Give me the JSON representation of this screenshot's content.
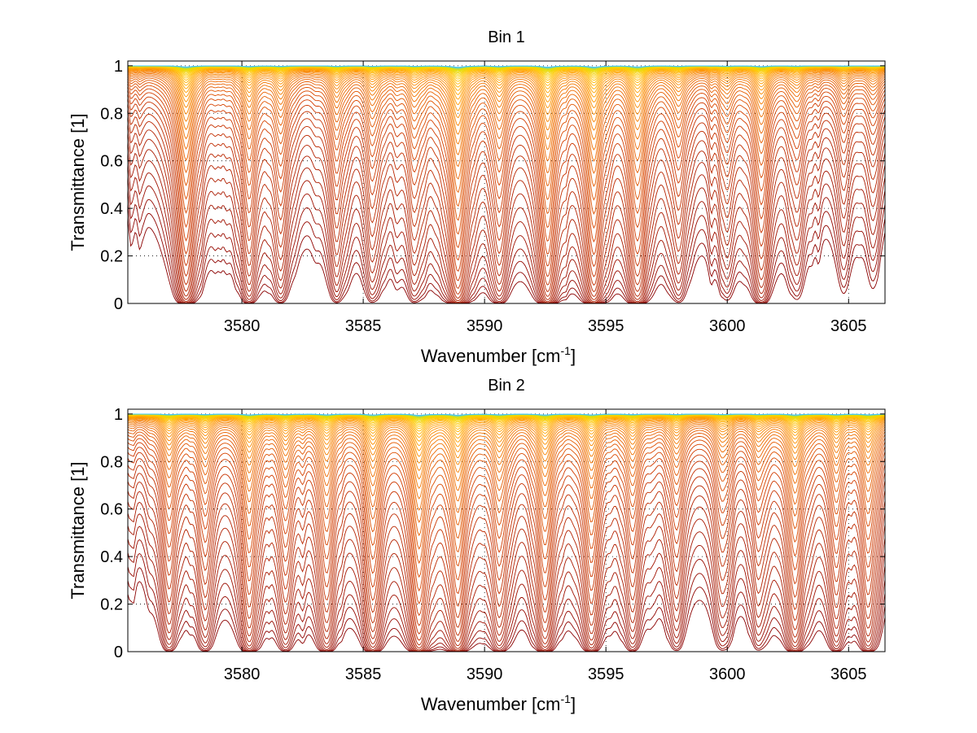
{
  "chart_data": [
    {
      "type": "line",
      "title": "Bin 1",
      "xlabel": "Wavenumber [cm",
      "xlabel_sup": "-1",
      "xlabel_end": "]",
      "ylabel": "Transmittance [1]",
      "xlim": [
        3575.3,
        3606.5
      ],
      "ylim": [
        0,
        1.02
      ],
      "x_ticks": [
        3580,
        3585,
        3590,
        3595,
        3600,
        3605
      ],
      "y_ticks": [
        0,
        0.2,
        0.4,
        0.6,
        0.8,
        1
      ],
      "y_tick_labels": [
        "0",
        "0.2",
        "0.4",
        "0.6",
        "0.8",
        "1"
      ],
      "grid": "dotted",
      "legend": "none",
      "series_count": 50,
      "colormap": [
        "#8b0000",
        "#b01e00",
        "#d23c00",
        "#ee6a00",
        "#ff9800",
        "#ffc800",
        "#e0e000",
        "#40c8ff"
      ],
      "absorption_lines": [
        {
          "x": 3577.7,
          "depth": 0.62
        },
        {
          "x": 3580.3,
          "depth": 0.32
        },
        {
          "x": 3581.6,
          "depth": 0.26
        },
        {
          "x": 3583.9,
          "depth": 0.22
        },
        {
          "x": 3585.4,
          "depth": 0.18
        },
        {
          "x": 3587.1,
          "depth": 0.2
        },
        {
          "x": 3588.9,
          "depth": 0.78
        },
        {
          "x": 3590.6,
          "depth": 0.32
        },
        {
          "x": 3592.6,
          "depth": 0.72
        },
        {
          "x": 3594.5,
          "depth": 0.7
        },
        {
          "x": 3596.3,
          "depth": 0.55
        },
        {
          "x": 3598.0,
          "depth": 0.22
        },
        {
          "x": 3600.0,
          "depth": 0.16
        },
        {
          "x": 3601.4,
          "depth": 0.38
        },
        {
          "x": 3602.9,
          "depth": 0.14
        },
        {
          "x": 3604.8,
          "depth": 0.12
        },
        {
          "x": 3606.0,
          "depth": 0.1
        }
      ]
    },
    {
      "type": "line",
      "title": "Bin 2",
      "xlabel": "Wavenumber [cm",
      "xlabel_sup": "-1",
      "xlabel_end": "]",
      "ylabel": "Transmittance [1]",
      "xlim": [
        3575.3,
        3606.5
      ],
      "ylim": [
        0,
        1.02
      ],
      "x_ticks": [
        3580,
        3585,
        3590,
        3595,
        3600,
        3605
      ],
      "y_ticks": [
        0,
        0.2,
        0.4,
        0.6,
        0.8,
        1
      ],
      "y_tick_labels": [
        "0",
        "0.2",
        "0.4",
        "0.6",
        "0.8",
        "1"
      ],
      "grid": "dotted",
      "legend": "none",
      "series_count": 50,
      "colormap": [
        "#8b0000",
        "#b01e00",
        "#d23c00",
        "#ee6a00",
        "#ff9800",
        "#ffc800",
        "#e0e000",
        "#40c8ff"
      ],
      "absorption_lines": [
        {
          "x": 3577.0,
          "depth": 0.3
        },
        {
          "x": 3578.5,
          "depth": 0.25
        },
        {
          "x": 3580.3,
          "depth": 0.45
        },
        {
          "x": 3581.8,
          "depth": 0.28
        },
        {
          "x": 3583.5,
          "depth": 0.4
        },
        {
          "x": 3585.4,
          "depth": 0.45
        },
        {
          "x": 3587.3,
          "depth": 0.7
        },
        {
          "x": 3588.9,
          "depth": 0.62
        },
        {
          "x": 3590.6,
          "depth": 0.35
        },
        {
          "x": 3592.5,
          "depth": 0.48
        },
        {
          "x": 3594.4,
          "depth": 0.42
        },
        {
          "x": 3596.1,
          "depth": 0.28
        },
        {
          "x": 3597.9,
          "depth": 0.22
        },
        {
          "x": 3599.8,
          "depth": 0.2
        },
        {
          "x": 3601.3,
          "depth": 0.18
        },
        {
          "x": 3602.8,
          "depth": 0.45
        },
        {
          "x": 3604.5,
          "depth": 0.3
        },
        {
          "x": 3605.8,
          "depth": 0.35
        }
      ]
    }
  ]
}
